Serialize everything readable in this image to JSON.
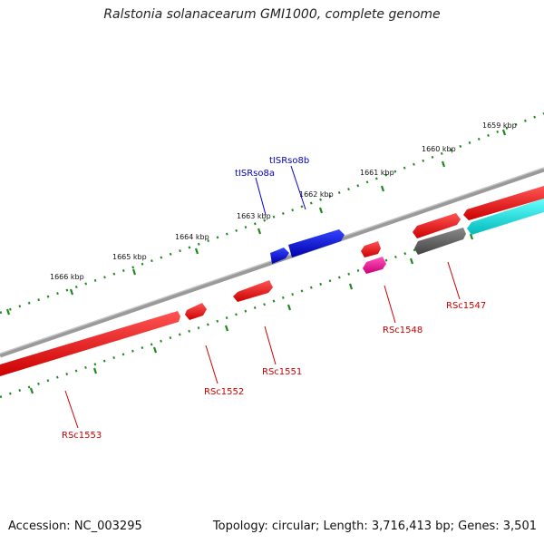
{
  "title": "Ralstonia solanacearum GMI1000, complete genome",
  "footer": {
    "accession": "Accession: NC_003295",
    "summary": "Topology: circular; Length: 3,716,413 bp; Genes: 3,501"
  },
  "ruler_labels": [
    "1659 kbp",
    "1660 kbp",
    "1661 kbp",
    "1662 kbp",
    "1663 kbp",
    "1664 kbp",
    "1665 kbp",
    "1666 kbp"
  ],
  "feature_labels": {
    "tISRso8a": "tISRso8a",
    "tISRso8b": "tISRso8b",
    "RSc1547": "RSc1547",
    "RSc1548": "RSc1548",
    "RSc1551": "RSc1551",
    "RSc1552": "RSc1552",
    "RSc1553": "RSc1553"
  },
  "colors": {
    "gene": "#ee0000",
    "trna": "#0000dd",
    "other": "#ee2299",
    "cds_gray": "#666666",
    "cds_cyan": "#00dddd",
    "backbone": "#888888",
    "ruler": "#228822"
  }
}
